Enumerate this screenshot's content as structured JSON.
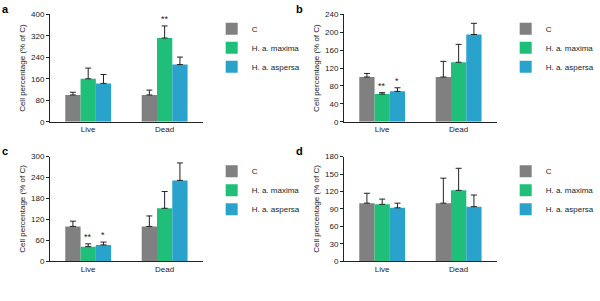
{
  "chart_data": [
    {
      "type": "bar",
      "title": "a",
      "ylabel": "Cell percentage (% of C)",
      "categories": [
        "Live",
        "Dead"
      ],
      "series": [
        {
          "name": "C",
          "color": "#808080",
          "values": [
            100,
            100
          ],
          "error": [
            10,
            18
          ]
        },
        {
          "name": "H. a. maxima",
          "color": "#1fbf7a",
          "values": [
            160,
            312
          ],
          "error": [
            40,
            45
          ]
        },
        {
          "name": "H. a. aspersa",
          "color": "#2aa3cc",
          "values": [
            143,
            213
          ],
          "error": [
            33,
            28
          ]
        }
      ],
      "annotations": [
        {
          "series": "H. a. maxima",
          "category": "Dead",
          "text": "**"
        }
      ],
      "ylim": [
        0,
        400
      ],
      "yticks": [
        0,
        80,
        160,
        240,
        320,
        400
      ],
      "grid": false,
      "legend": "right"
    },
    {
      "type": "bar",
      "title": "b",
      "ylabel": "Cell percentage (% of C)",
      "categories": [
        "Live",
        "Dead"
      ],
      "series": [
        {
          "name": "C",
          "color": "#808080",
          "values": [
            100,
            100
          ],
          "error": [
            8,
            35
          ]
        },
        {
          "name": "H. a. maxima",
          "color": "#1fbf7a",
          "values": [
            62,
            133
          ],
          "error": [
            3,
            40
          ]
        },
        {
          "name": "H. a. aspersa",
          "color": "#2aa3cc",
          "values": [
            68,
            195
          ],
          "error": [
            8,
            25
          ]
        }
      ],
      "annotations": [
        {
          "series": "H. a. maxima",
          "category": "Live",
          "text": "**"
        },
        {
          "series": "H. a. aspersa",
          "category": "Live",
          "text": "*"
        }
      ],
      "ylim": [
        0,
        240
      ],
      "yticks": [
        0,
        40,
        80,
        120,
        160,
        200,
        240
      ],
      "grid": false,
      "legend": "right"
    },
    {
      "type": "bar",
      "title": "c",
      "ylabel": "Cell percentage (% of C)",
      "categories": [
        "Live",
        "Dead"
      ],
      "series": [
        {
          "name": "C",
          "color": "#808080",
          "values": [
            100,
            100
          ],
          "error": [
            15,
            30
          ]
        },
        {
          "name": "H. a. maxima",
          "color": "#1fbf7a",
          "values": [
            42,
            152
          ],
          "error": [
            8,
            48
          ]
        },
        {
          "name": "H. a. aspersa",
          "color": "#2aa3cc",
          "values": [
            47,
            232
          ],
          "error": [
            8,
            50
          ]
        }
      ],
      "annotations": [
        {
          "series": "H. a. maxima",
          "category": "Live",
          "text": "**"
        },
        {
          "series": "H. a. aspersa",
          "category": "Live",
          "text": "*"
        }
      ],
      "ylim": [
        0,
        300
      ],
      "yticks": [
        0,
        60,
        120,
        180,
        240,
        300
      ],
      "grid": false,
      "legend": "right"
    },
    {
      "type": "bar",
      "title": "d",
      "ylabel": "Cell percentage (% of C)",
      "categories": [
        "Live",
        "Dead"
      ],
      "series": [
        {
          "name": "C",
          "color": "#808080",
          "values": [
            100,
            100
          ],
          "error": [
            17,
            43
          ]
        },
        {
          "name": "H. a. maxima",
          "color": "#1fbf7a",
          "values": [
            98,
            122
          ],
          "error": [
            9,
            38
          ]
        },
        {
          "name": "H. a. aspersa",
          "color": "#2aa3cc",
          "values": [
            92,
            94
          ],
          "error": [
            8,
            20
          ]
        }
      ],
      "annotations": [],
      "ylim": [
        0,
        180
      ],
      "yticks": [
        0,
        30,
        60,
        90,
        120,
        150,
        180
      ],
      "grid": false,
      "legend": "right"
    }
  ]
}
